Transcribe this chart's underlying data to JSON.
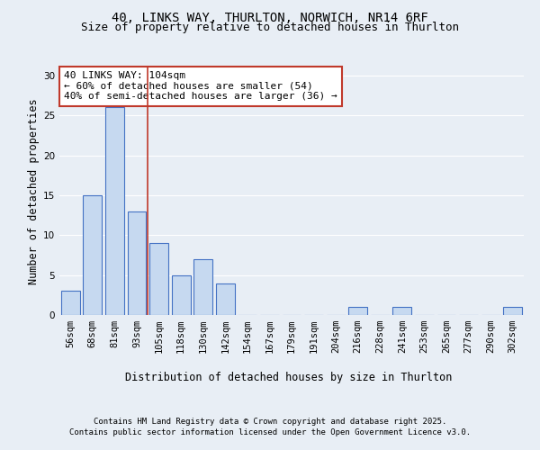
{
  "title_line1": "40, LINKS WAY, THURLTON, NORWICH, NR14 6RF",
  "title_line2": "Size of property relative to detached houses in Thurlton",
  "xlabel": "Distribution of detached houses by size in Thurlton",
  "ylabel": "Number of detached properties",
  "categories": [
    "56sqm",
    "68sqm",
    "81sqm",
    "93sqm",
    "105sqm",
    "118sqm",
    "130sqm",
    "142sqm",
    "154sqm",
    "167sqm",
    "179sqm",
    "191sqm",
    "204sqm",
    "216sqm",
    "228sqm",
    "241sqm",
    "253sqm",
    "265sqm",
    "277sqm",
    "290sqm",
    "302sqm"
  ],
  "values": [
    3,
    15,
    26,
    13,
    9,
    5,
    7,
    4,
    0,
    0,
    0,
    0,
    0,
    1,
    0,
    1,
    0,
    0,
    0,
    0,
    1
  ],
  "bar_color": "#c6d9f0",
  "bar_edge_color": "#4472c4",
  "vline_color": "#c0392b",
  "annotation_text": "40 LINKS WAY: 104sqm\n← 60% of detached houses are smaller (54)\n40% of semi-detached houses are larger (36) →",
  "annotation_box_color": "#ffffff",
  "annotation_box_edge_color": "#c0392b",
  "ylim": [
    0,
    31
  ],
  "yticks": [
    0,
    5,
    10,
    15,
    20,
    25,
    30
  ],
  "footer_line1": "Contains HM Land Registry data © Crown copyright and database right 2025.",
  "footer_line2": "Contains public sector information licensed under the Open Government Licence v3.0.",
  "bg_color": "#e8eef5",
  "plot_bg_color": "#e8eef5",
  "grid_color": "#ffffff",
  "title_fontsize": 10,
  "subtitle_fontsize": 9,
  "axis_label_fontsize": 8.5,
  "tick_fontsize": 7.5,
  "annotation_fontsize": 8,
  "footer_fontsize": 6.5
}
